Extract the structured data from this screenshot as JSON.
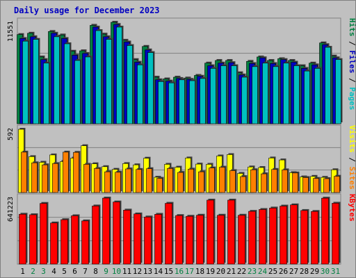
{
  "title": "Daily usage for December 2023",
  "colors": {
    "background": "#c0c0c0",
    "panel": "#c0c0c0",
    "grid": "#808080",
    "hits": "#008040",
    "files": "#0000c0",
    "pages": "#00c0c0",
    "visits": "#ffff00",
    "sites": "#ff8000",
    "kbytes": "#ff0000",
    "weekend_label": "#008040",
    "weekday_label": "#000000"
  },
  "chart_data": [
    {
      "type": "bar",
      "panel": "hits-files-pages",
      "ymax_label": "11551",
      "side_label": [
        "Hits",
        "Files",
        "Pages"
      ],
      "categories": [
        "1",
        "2",
        "3",
        "4",
        "5",
        "6",
        "7",
        "8",
        "9",
        "10",
        "11",
        "12",
        "13",
        "14",
        "15",
        "16",
        "17",
        "18",
        "19",
        "20",
        "21",
        "22",
        "23",
        "24",
        "25",
        "26",
        "27",
        "28",
        "29",
        "30",
        "31"
      ],
      "series": [
        {
          "name": "Hits",
          "values": [
            10150,
            10300,
            7600,
            10500,
            10100,
            8250,
            8300,
            11200,
            10200,
            11551,
            9500,
            7300,
            8800,
            5300,
            5100,
            5300,
            5200,
            5500,
            6900,
            7200,
            7200,
            5800,
            7100,
            7600,
            7200,
            7400,
            7200,
            6600,
            6900,
            9200,
            7700
          ]
        },
        {
          "name": "Files",
          "values": [
            9700,
            9900,
            7300,
            10300,
            9700,
            7800,
            8000,
            11000,
            9900,
            11300,
            9300,
            7000,
            8400,
            5000,
            4850,
            5150,
            5050,
            5400,
            6600,
            6900,
            6950,
            5550,
            6850,
            7500,
            6850,
            7300,
            7000,
            6300,
            6700,
            9000,
            7500
          ]
        },
        {
          "name": "Pages",
          "values": [
            9400,
            9600,
            6900,
            9900,
            9100,
            7200,
            7600,
            10600,
            9600,
            11000,
            8900,
            6700,
            8100,
            4800,
            4650,
            5000,
            4900,
            5150,
            6300,
            6600,
            6600,
            5300,
            6500,
            6900,
            6500,
            6900,
            6600,
            6000,
            6300,
            8700,
            7300
          ]
        }
      ]
    },
    {
      "type": "bar",
      "panel": "visits-sites",
      "ymax_label": "592",
      "side_label": [
        "Visits",
        "Sites"
      ],
      "categories": [
        "1",
        "2",
        "3",
        "4",
        "5",
        "6",
        "7",
        "8",
        "9",
        "10",
        "11",
        "12",
        "13",
        "14",
        "15",
        "16",
        "17",
        "18",
        "19",
        "20",
        "21",
        "22",
        "23",
        "24",
        "25",
        "26",
        "27",
        "28",
        "29",
        "30",
        "31"
      ],
      "series": [
        {
          "name": "Visits",
          "values": [
            592,
            336,
            283,
            352,
            290,
            322,
            438,
            269,
            242,
            217,
            271,
            259,
            321,
            143,
            264,
            237,
            323,
            266,
            264,
            342,
            355,
            179,
            239,
            234,
            323,
            305,
            186,
            146,
            151,
            142,
            213
          ]
        },
        {
          "name": "Sites",
          "values": [
            378,
            278,
            259,
            271,
            378,
            376,
            264,
            225,
            194,
            190,
            221,
            216,
            223,
            133,
            225,
            188,
            219,
            194,
            230,
            237,
            205,
            149,
            213,
            175,
            216,
            212,
            183,
            140,
            132,
            130,
            152
          ]
        }
      ]
    },
    {
      "type": "bar",
      "panel": "kbytes",
      "ymax_label": "641223",
      "side_label": [
        "KBytes"
      ],
      "categories": [
        "1",
        "2",
        "3",
        "4",
        "5",
        "6",
        "7",
        "8",
        "9",
        "10",
        "11",
        "12",
        "13",
        "14",
        "15",
        "16",
        "17",
        "18",
        "19",
        "20",
        "21",
        "22",
        "23",
        "24",
        "25",
        "26",
        "27",
        "28",
        "29",
        "30",
        "31"
      ],
      "series": [
        {
          "name": "KBytes",
          "values": [
            485000,
            480000,
            590000,
            400000,
            432000,
            470000,
            420000,
            565000,
            642000,
            604000,
            525000,
            488000,
            458000,
            484000,
            591000,
            472000,
            465000,
            475000,
            622000,
            475000,
            622000,
            475000,
            513000,
            531000,
            545000,
            564000,
            576000,
            521000,
            512000,
            641223,
            592000
          ]
        }
      ]
    }
  ]
}
